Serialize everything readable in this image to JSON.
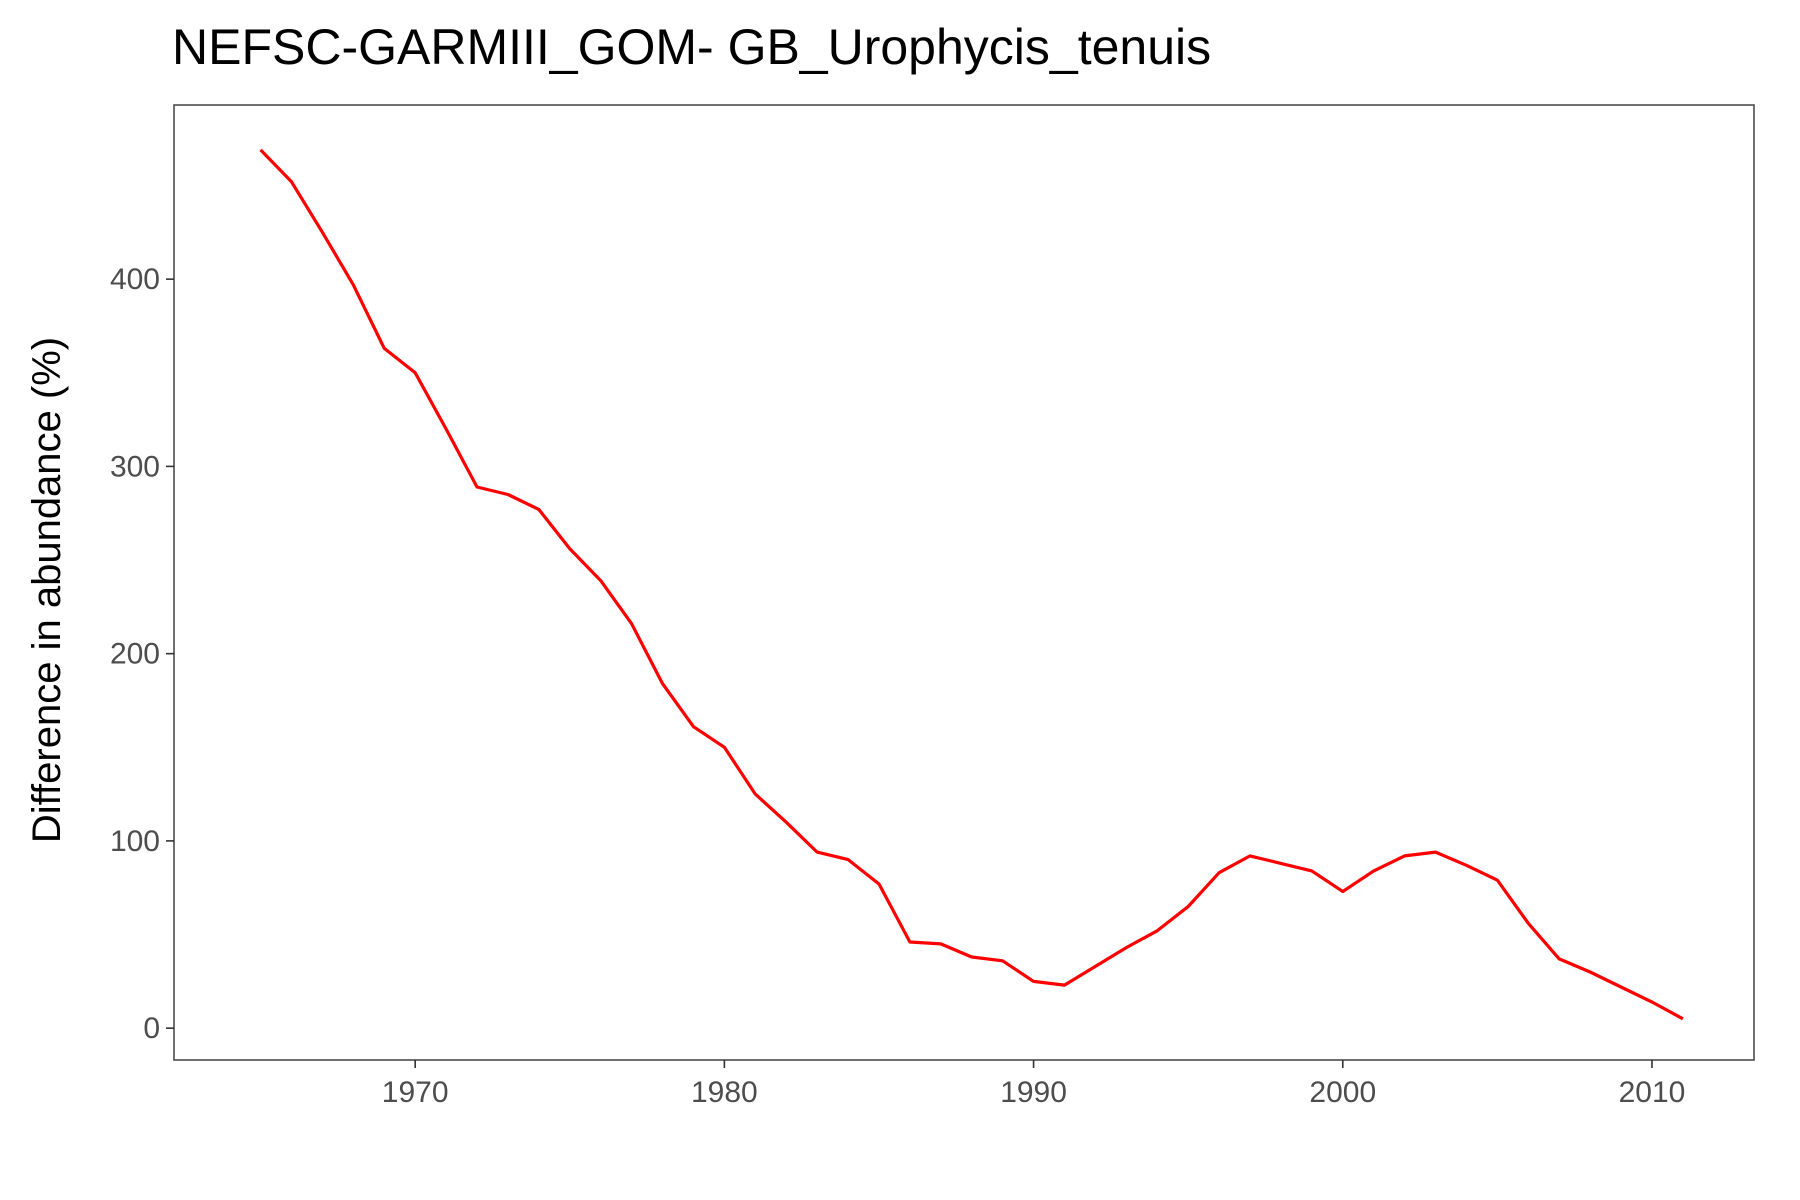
{
  "chart_data": {
    "type": "line",
    "title": "NEFSC-GARMIII_GOM- GB_Urophycis_tenuis",
    "xlabel": "",
    "ylabel": "Difference in abundance (%)",
    "xlim": [
      1962.2,
      2013.3
    ],
    "ylim": [
      -17,
      493
    ],
    "x_ticks": [
      1970,
      1980,
      1990,
      2000,
      2010
    ],
    "y_ticks": [
      0,
      100,
      200,
      300,
      400
    ],
    "grid": false,
    "series": [
      {
        "color": "#ff0000",
        "x": [
          1965,
          1966,
          1967,
          1968,
          1969,
          1970,
          1971,
          1972,
          1973,
          1974,
          1975,
          1976,
          1977,
          1978,
          1979,
          1980,
          1981,
          1982,
          1983,
          1984,
          1985,
          1986,
          1987,
          1988,
          1989,
          1990,
          1991,
          1992,
          1993,
          1994,
          1995,
          1996,
          1997,
          1998,
          1999,
          2000,
          2001,
          2002,
          2003,
          2004,
          2005,
          2006,
          2007,
          2008,
          2009,
          2010,
          2011
        ],
        "values": [
          469,
          452,
          425,
          397,
          363,
          350,
          320,
          289,
          285,
          277,
          256,
          239,
          216,
          184,
          161,
          150,
          125,
          110,
          94,
          90,
          77,
          46,
          45,
          38,
          36,
          25,
          23,
          33,
          43,
          52,
          65,
          83,
          92,
          88,
          84,
          73,
          84,
          92,
          94,
          87,
          79,
          56,
          37,
          30,
          22,
          14,
          5
        ]
      }
    ]
  }
}
